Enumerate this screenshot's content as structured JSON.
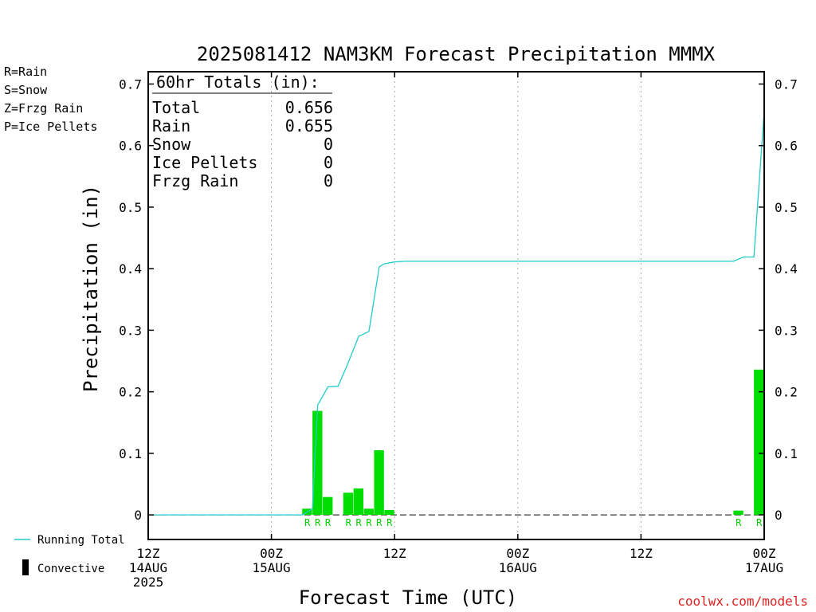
{
  "title": "2025081412 NAM3KM Forecast Precipitation MMMX",
  "ylabel": "Precipitation (in)",
  "xlabel": "Forecast Time (UTC)",
  "credit": "coolwx.com/models",
  "ptype_legend": [
    {
      "text": "R=Rain",
      "color": "#00cc00"
    },
    {
      "text": "S=Snow",
      "color": "#3344dd"
    },
    {
      "text": "Z=Frzg Rain",
      "color": "#ee8833"
    },
    {
      "text": "P=Ice Pellets",
      "color": "#ee2299"
    }
  ],
  "series_legend": {
    "running_total": "Running Total",
    "convective": "Convective"
  },
  "totals": {
    "header": "60hr Totals (in):",
    "rows": [
      {
        "label": "Total",
        "value": "0.656"
      },
      {
        "label": "Rain",
        "value": "0.655"
      },
      {
        "label": "Snow",
        "value": "0"
      },
      {
        "label": "Ice Pellets",
        "value": "0"
      },
      {
        "label": "Frzg Rain",
        "value": "0"
      }
    ]
  },
  "colors": {
    "bar": "#00dd00",
    "line": "#22cccc",
    "rain_marker": "#00cc00",
    "grid": "#aaaaaa",
    "credit": "#dd2222"
  },
  "chart_data": {
    "type": "bar",
    "x_unit": "forecast hour",
    "xlim": [
      0,
      60
    ],
    "ylim": [
      -0.04,
      0.72
    ],
    "y_ticks": [
      0,
      0.1,
      0.2,
      0.3,
      0.4,
      0.5,
      0.6,
      0.7
    ],
    "y_tick_labels": [
      "0",
      "0.1",
      "0.2",
      "0.3",
      "0.4",
      "0.5",
      "0.6",
      "0.7"
    ],
    "x_ticks": [
      {
        "hour": 0,
        "lines": [
          "12Z",
          "14AUG",
          "2025"
        ]
      },
      {
        "hour": 12,
        "lines": [
          "00Z",
          "15AUG"
        ]
      },
      {
        "hour": 24,
        "lines": [
          "12Z"
        ]
      },
      {
        "hour": 36,
        "lines": [
          "00Z",
          "16AUG"
        ]
      },
      {
        "hour": 48,
        "lines": [
          "12Z"
        ]
      },
      {
        "hour": 60,
        "lines": [
          "00Z",
          "17AUG"
        ]
      }
    ],
    "grid_hours": [
      12,
      24,
      36,
      48
    ],
    "bars": [
      {
        "hour": 16,
        "value": 0.01,
        "ptype": "R"
      },
      {
        "hour": 17,
        "value": 0.169,
        "ptype": "R"
      },
      {
        "hour": 18,
        "value": 0.029,
        "ptype": "R"
      },
      {
        "hour": 20,
        "value": 0.036,
        "ptype": "R"
      },
      {
        "hour": 21,
        "value": 0.043,
        "ptype": "R"
      },
      {
        "hour": 22,
        "value": 0.01,
        "ptype": "R"
      },
      {
        "hour": 23,
        "value": 0.105,
        "ptype": "R"
      },
      {
        "hour": 24,
        "value": 0.008,
        "ptype": "R"
      },
      {
        "hour": 58,
        "value": 0.007,
        "ptype": "R"
      },
      {
        "hour": 60,
        "value": 0.236,
        "ptype": "R"
      }
    ],
    "running_total": {
      "name": "Running Total",
      "x": [
        0,
        15,
        16,
        16.5,
        17.5,
        18.5,
        19.5,
        20.5,
        21.5,
        22.5,
        23,
        24,
        25,
        57,
        58,
        59,
        60
      ],
      "y": [
        0,
        0,
        0.01,
        0.178,
        0.208,
        0.209,
        0.248,
        0.29,
        0.298,
        0.403,
        0.408,
        0.411,
        0.412,
        0.412,
        0.419,
        0.419,
        0.656
      ]
    },
    "dashed_baseline": true
  }
}
